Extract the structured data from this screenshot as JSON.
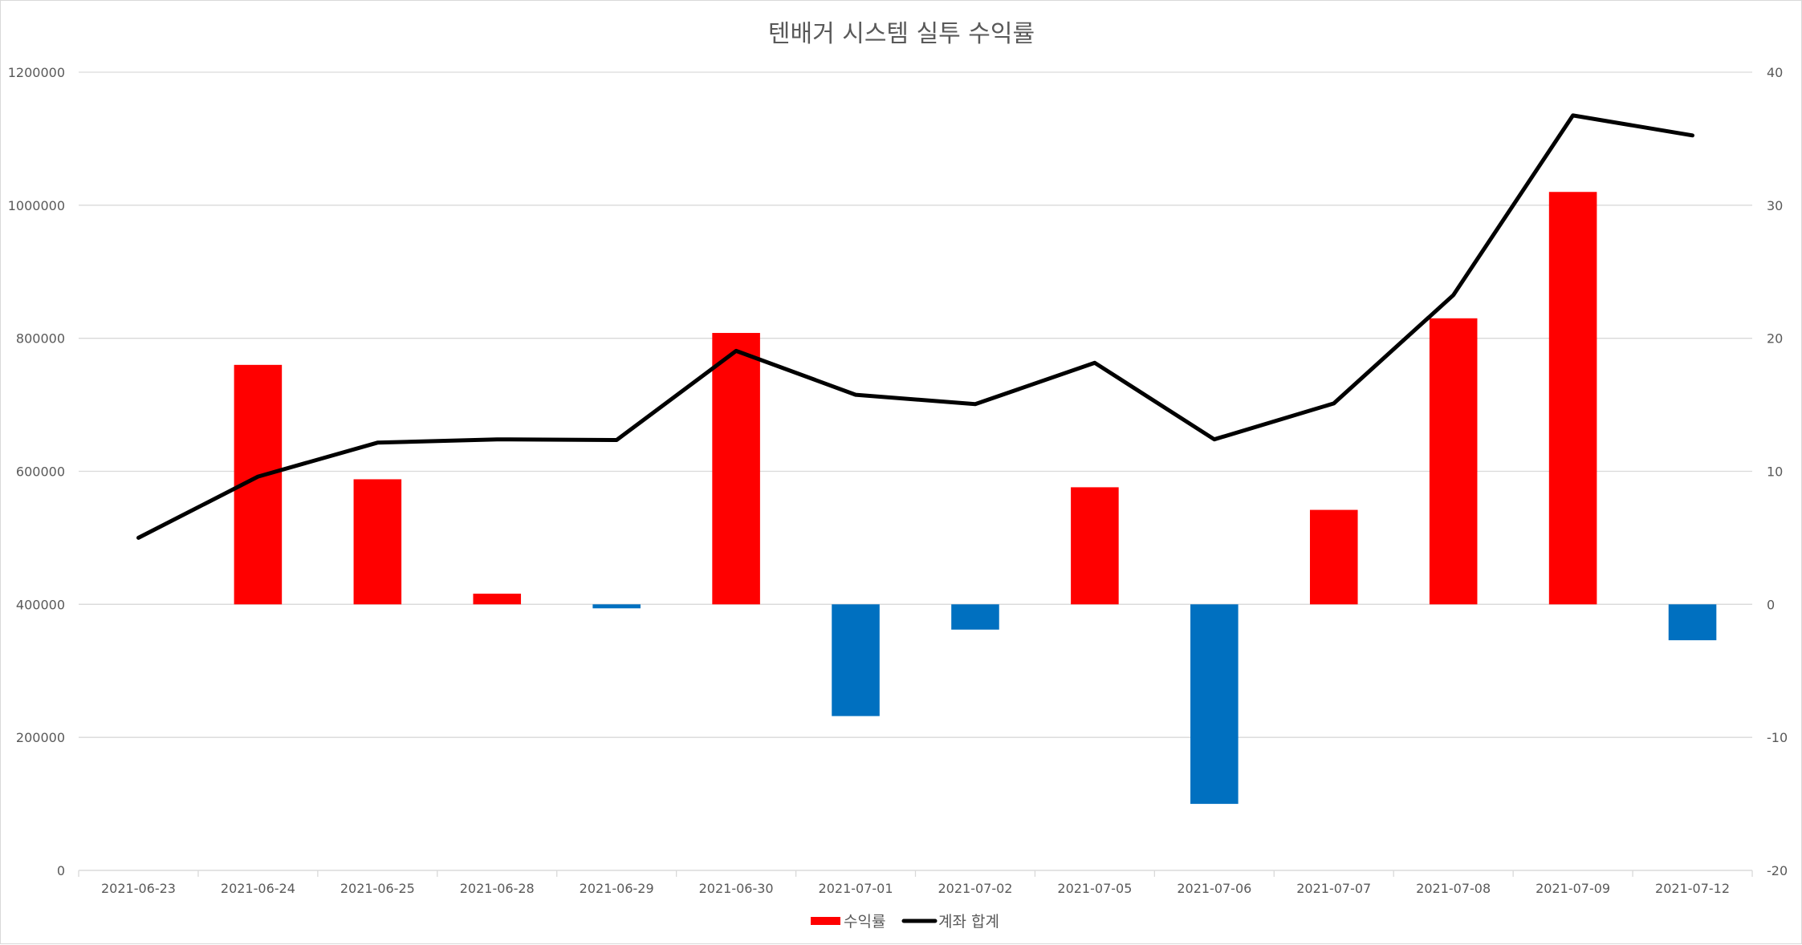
{
  "chart_data": {
    "type": "bar",
    "title": "텐배거 시스템 실투 수익률",
    "categories": [
      "2021-06-23",
      "2021-06-24",
      "2021-06-25",
      "2021-06-28",
      "2021-06-29",
      "2021-06-30",
      "2021-07-01",
      "2021-07-02",
      "2021-07-05",
      "2021-07-06",
      "2021-07-07",
      "2021-07-08",
      "2021-07-09",
      "2021-07-12"
    ],
    "left_axis": {
      "ylim": [
        0,
        1200000
      ],
      "ticks": [
        "0",
        "200000",
        "400000",
        "600000",
        "800000",
        "1000000",
        "1200000"
      ],
      "tick_values": [
        0,
        200000,
        400000,
        600000,
        800000,
        1000000,
        1200000
      ]
    },
    "right_axis": {
      "ylim": [
        -20,
        40
      ],
      "ticks": [
        "-20",
        "-10",
        "0",
        "10",
        "20",
        "30",
        "40"
      ],
      "tick_values": [
        -20,
        -10,
        0,
        10,
        20,
        30,
        40
      ]
    },
    "grid": true,
    "legend_position": "bottom",
    "series": [
      {
        "name": "수익률",
        "type": "bar",
        "axis": "right",
        "color": "#ff0000",
        "negative_color": "#0070c0",
        "values": [
          0,
          18.0,
          9.4,
          0.8,
          -0.3,
          20.4,
          -8.4,
          -1.9,
          8.8,
          -15.0,
          7.1,
          21.5,
          31.0,
          -2.7
        ]
      },
      {
        "name": "계좌 합계",
        "type": "line",
        "axis": "left",
        "color": "#000000",
        "values": [
          500000,
          592000,
          643000,
          648000,
          647000,
          781000,
          715000,
          701000,
          763000,
          648000,
          702000,
          865000,
          1135000,
          1105000
        ]
      }
    ]
  }
}
